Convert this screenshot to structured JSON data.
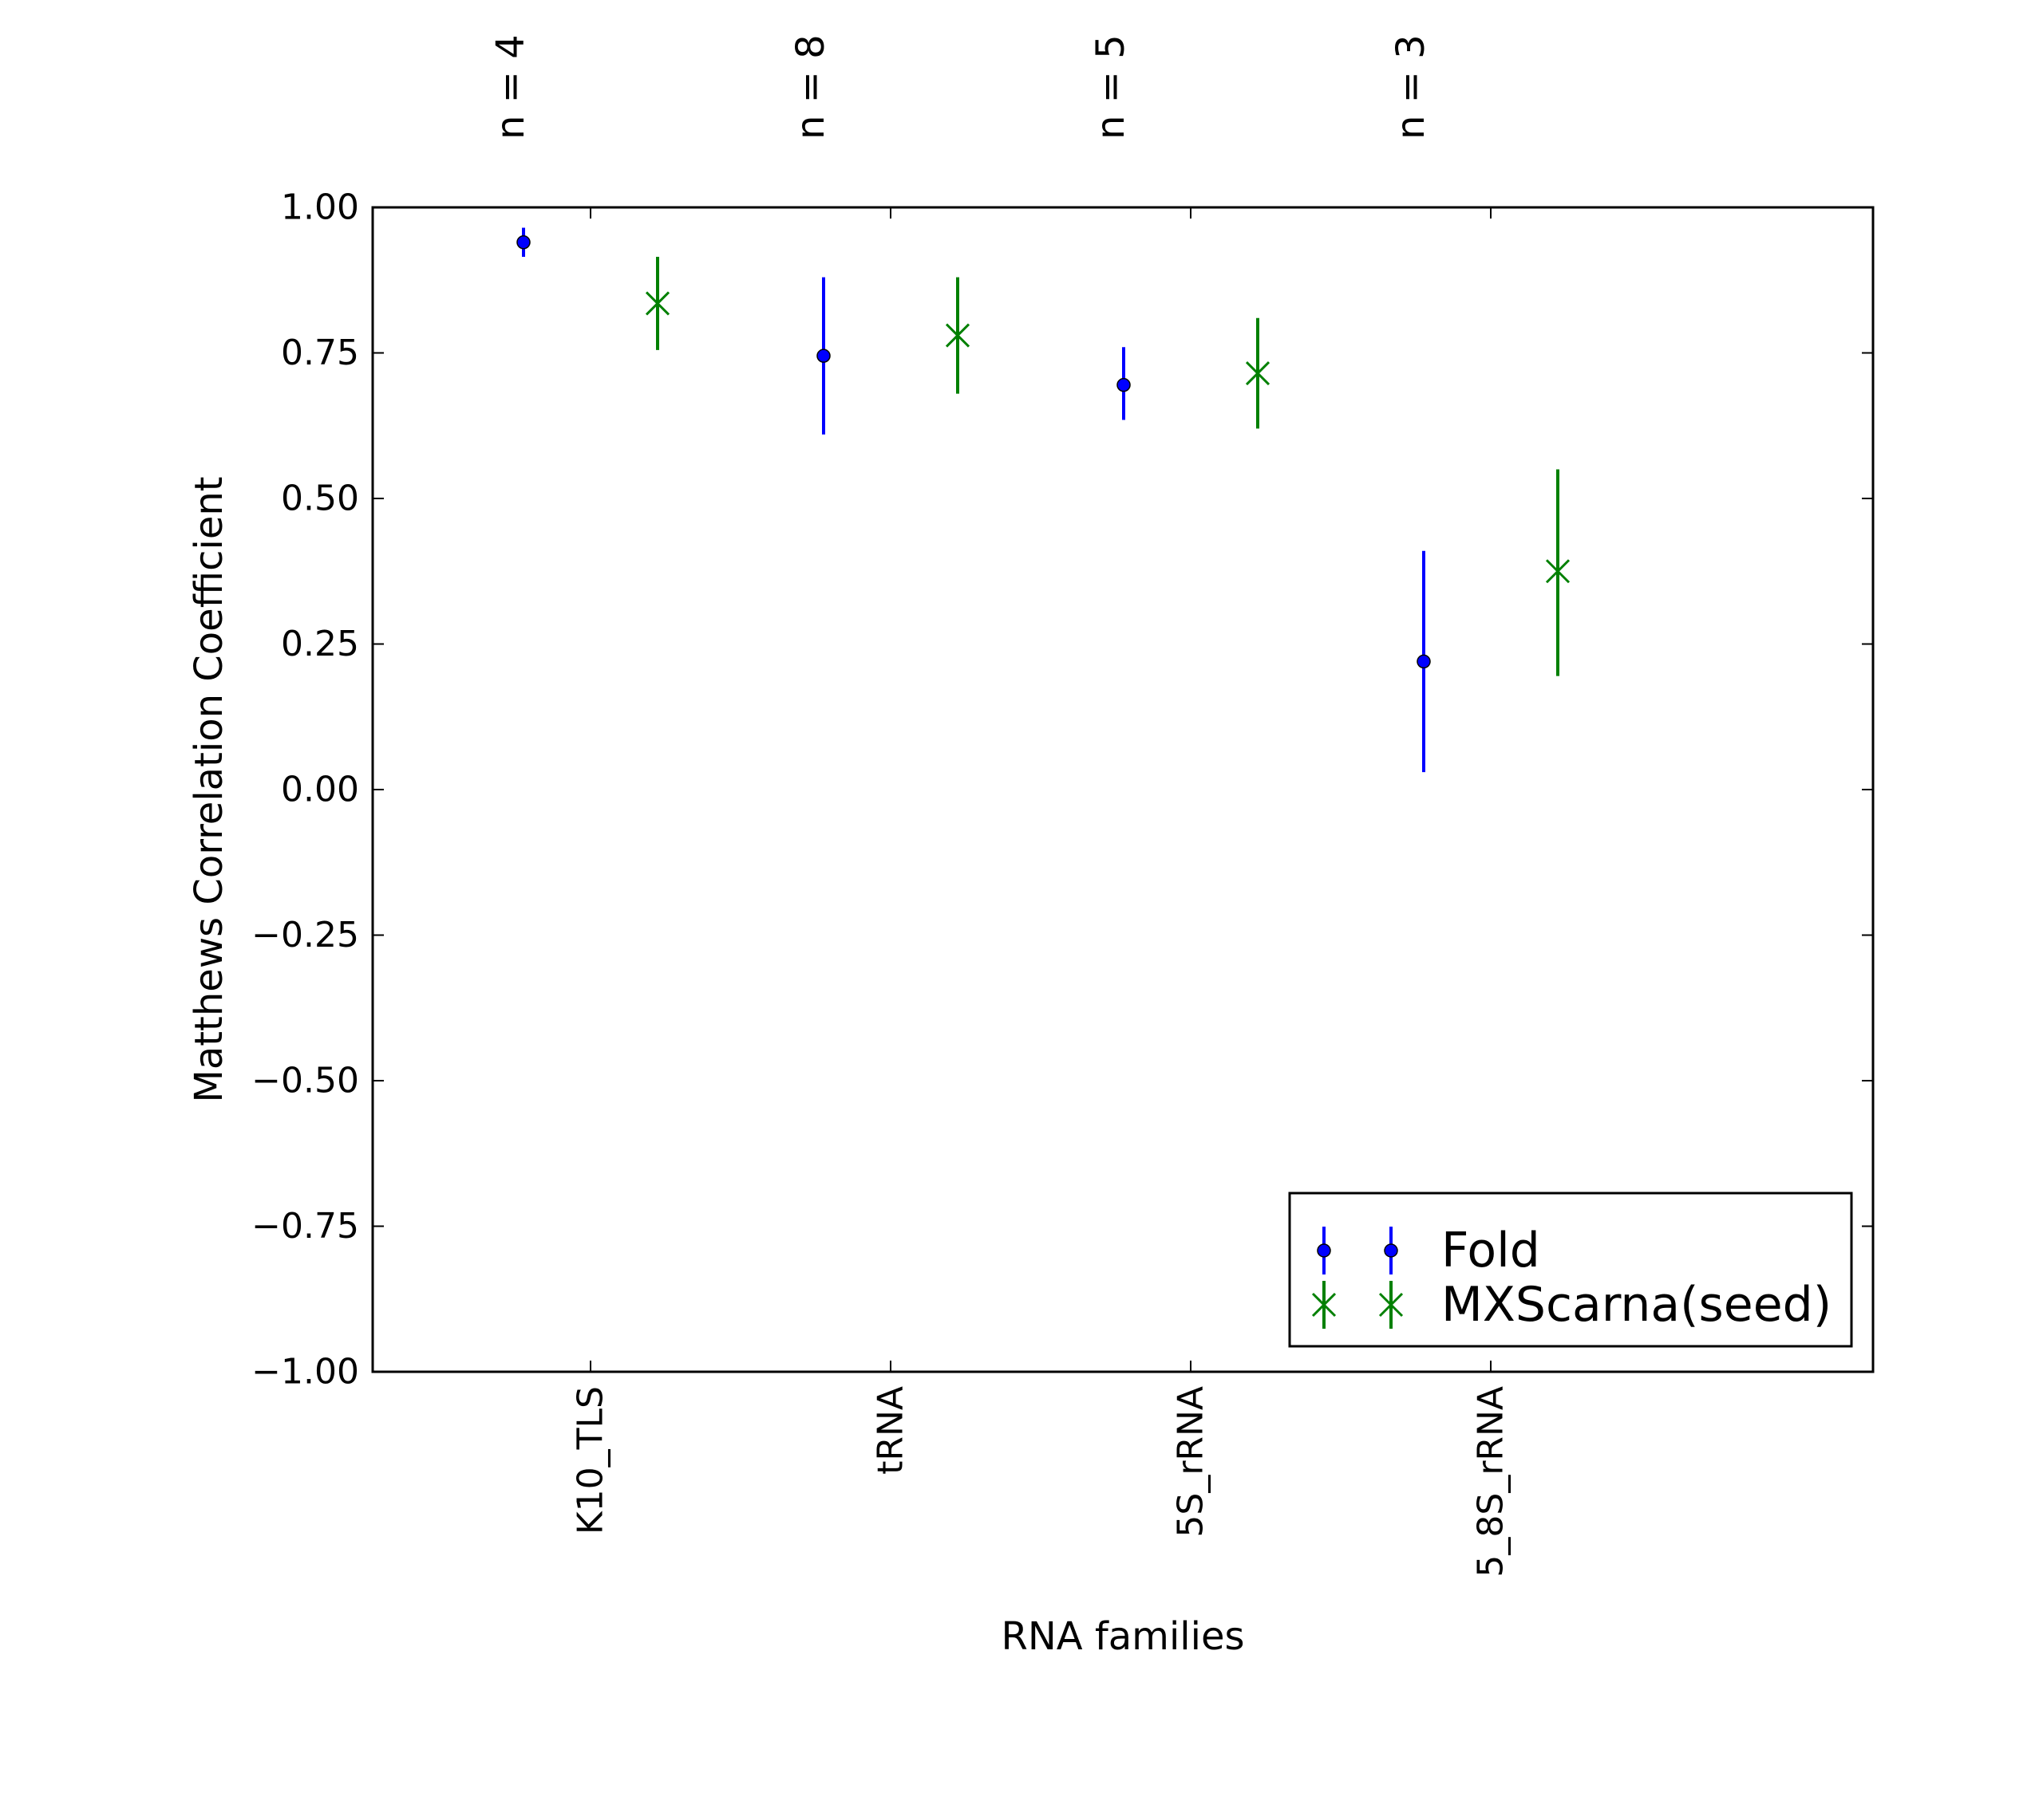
{
  "chart_data": {
    "type": "scatter",
    "xlabel": "RNA families",
    "ylabel": "Matthews Correlation Coefficient",
    "ylim": [
      -1.0,
      1.0
    ],
    "yticks": [
      -1.0,
      -0.75,
      -0.5,
      -0.25,
      0.0,
      0.25,
      0.5,
      0.75,
      1.0
    ],
    "ytick_labels": [
      "−1.00",
      "−0.75",
      "−0.50",
      "−0.25",
      "0.00",
      "0.25",
      "0.50",
      "0.75",
      "1.00"
    ],
    "categories": [
      "K10_TLS",
      "tRNA",
      "5S_rRNA",
      "5_8S_rRNA"
    ],
    "counts": [
      "n = 4",
      "n = 8",
      "n = 5",
      "n = 3"
    ],
    "grid": false,
    "legend_position": "lower-right",
    "series": [
      {
        "name": "Fold",
        "color": "#0000ff",
        "marker": "dot",
        "values": [
          0.94,
          0.745,
          0.695,
          0.22
        ],
        "err_low": [
          0.915,
          0.61,
          0.635,
          0.03
        ],
        "err_high": [
          0.965,
          0.88,
          0.76,
          0.41
        ]
      },
      {
        "name": "MXScarna(seed)",
        "color": "#008000",
        "marker": "x",
        "values": [
          0.835,
          0.78,
          0.715,
          0.375
        ],
        "err_low": [
          0.755,
          0.68,
          0.62,
          0.195
        ],
        "err_high": [
          0.915,
          0.88,
          0.81,
          0.55
        ]
      }
    ]
  }
}
